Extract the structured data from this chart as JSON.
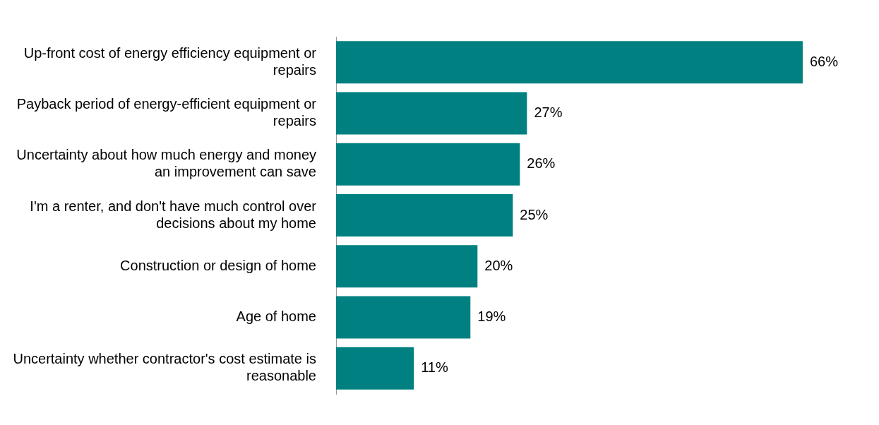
{
  "chart_data": {
    "type": "bar",
    "orientation": "horizontal",
    "categories": [
      "Up-front cost of energy efficiency equipment or repairs",
      "Payback period of energy-efficient equipment or repairs",
      "Uncertainty about how much energy and money an improvement can save",
      "I'm a renter, and don't have much control over decisions about my home",
      "Construction or design of home",
      "Age of home",
      "Uncertainty whether contractor's cost estimate is reasonable"
    ],
    "values": [
      66,
      27,
      26,
      25,
      20,
      19,
      11
    ],
    "value_labels": [
      "66%",
      "27%",
      "26%",
      "25%",
      "20%",
      "19%",
      "11%"
    ],
    "color": "#008080",
    "grid": false,
    "legend": false
  }
}
